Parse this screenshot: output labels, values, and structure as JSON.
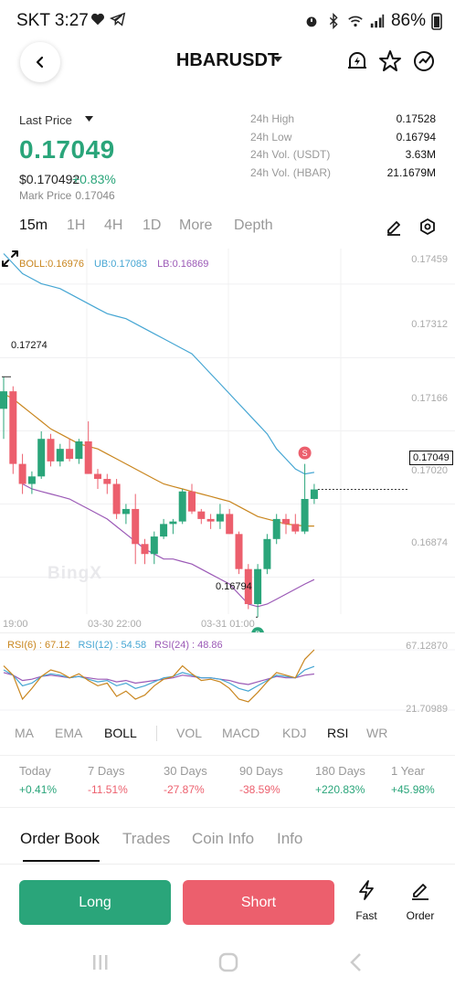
{
  "status": {
    "time": "SKT 3:27",
    "battery": "86%"
  },
  "header": {
    "pair": "HBARUSDT"
  },
  "price": {
    "label": "Last Price",
    "last": "0.17049",
    "usd": "$0.170492",
    "change": "+0.83%",
    "mark_label": "Mark Price",
    "mark_value": "0.17046"
  },
  "stats": [
    {
      "label": "24h High",
      "value": "0.17528"
    },
    {
      "label": "24h Low",
      "value": "0.16794"
    },
    {
      "label": "24h Vol. (USDT)",
      "value": "3.63M"
    },
    {
      "label": "24h Vol. (HBAR)",
      "value": "21.1679M"
    }
  ],
  "timeframes": [
    "15m",
    "1H",
    "4H",
    "1D",
    "More",
    "Depth"
  ],
  "chart": {
    "boll": "BOLL:0.16976",
    "ub": "UB:0.17083",
    "lb": "LB:0.16869",
    "price_axis": [
      "0.17459",
      "0.17312",
      "0.17166",
      "0.17020",
      "0.16874"
    ],
    "current_price": "0.17049",
    "high_marker": "0.17274",
    "low_marker": "0.16794",
    "watermark": "BingX",
    "sell_marker": "S",
    "buy_marker": "B",
    "time_axis": [
      "19:00",
      "03-30 22:00",
      "03-31 01:00"
    ]
  },
  "chart_data": {
    "type": "candlestick",
    "interval": "15m",
    "price_ylim": [
      0.168,
      0.1753
    ],
    "candles": [
      {
        "o": 0.1721,
        "h": 0.17274,
        "l": 0.1715,
        "c": 0.17245
      },
      {
        "o": 0.17245,
        "h": 0.17255,
        "l": 0.1708,
        "c": 0.171
      },
      {
        "o": 0.171,
        "h": 0.1712,
        "l": 0.1704,
        "c": 0.1706
      },
      {
        "o": 0.1706,
        "h": 0.17085,
        "l": 0.1704,
        "c": 0.17075
      },
      {
        "o": 0.17075,
        "h": 0.17165,
        "l": 0.1707,
        "c": 0.1715
      },
      {
        "o": 0.1715,
        "h": 0.1716,
        "l": 0.17095,
        "c": 0.17105
      },
      {
        "o": 0.17105,
        "h": 0.1714,
        "l": 0.17095,
        "c": 0.1713
      },
      {
        "o": 0.1713,
        "h": 0.1715,
        "l": 0.17105,
        "c": 0.1711
      },
      {
        "o": 0.1711,
        "h": 0.1715,
        "l": 0.171,
        "c": 0.17145
      },
      {
        "o": 0.17145,
        "h": 0.17185,
        "l": 0.1708,
        "c": 0.1708
      },
      {
        "o": 0.1708,
        "h": 0.1709,
        "l": 0.1705,
        "c": 0.1707
      },
      {
        "o": 0.1707,
        "h": 0.1708,
        "l": 0.1704,
        "c": 0.1706
      },
      {
        "o": 0.1706,
        "h": 0.1707,
        "l": 0.1699,
        "c": 0.17
      },
      {
        "o": 0.17,
        "h": 0.1702,
        "l": 0.1698,
        "c": 0.1701
      },
      {
        "o": 0.1701,
        "h": 0.1704,
        "l": 0.169,
        "c": 0.1694
      },
      {
        "o": 0.1694,
        "h": 0.1695,
        "l": 0.169,
        "c": 0.1692
      },
      {
        "o": 0.1692,
        "h": 0.16965,
        "l": 0.169,
        "c": 0.16955
      },
      {
        "o": 0.16955,
        "h": 0.1699,
        "l": 0.1695,
        "c": 0.1698
      },
      {
        "o": 0.1698,
        "h": 0.1699,
        "l": 0.1696,
        "c": 0.16985
      },
      {
        "o": 0.16985,
        "h": 0.1705,
        "l": 0.1698,
        "c": 0.17045
      },
      {
        "o": 0.17045,
        "h": 0.1706,
        "l": 0.17,
        "c": 0.17005
      },
      {
        "o": 0.17005,
        "h": 0.1701,
        "l": 0.1698,
        "c": 0.1699
      },
      {
        "o": 0.1699,
        "h": 0.17,
        "l": 0.1697,
        "c": 0.16985
      },
      {
        "o": 0.16985,
        "h": 0.1702,
        "l": 0.1697,
        "c": 0.17
      },
      {
        "o": 0.17,
        "h": 0.1701,
        "l": 0.1696,
        "c": 0.1696
      },
      {
        "o": 0.1696,
        "h": 0.16965,
        "l": 0.1688,
        "c": 0.1689
      },
      {
        "o": 0.1689,
        "h": 0.169,
        "l": 0.1681,
        "c": 0.1682
      },
      {
        "o": 0.1682,
        "h": 0.169,
        "l": 0.16794,
        "c": 0.1689
      },
      {
        "o": 0.1689,
        "h": 0.1696,
        "l": 0.1688,
        "c": 0.1695
      },
      {
        "o": 0.1695,
        "h": 0.17,
        "l": 0.1694,
        "c": 0.1699
      },
      {
        "o": 0.1699,
        "h": 0.17,
        "l": 0.1696,
        "c": 0.1698
      },
      {
        "o": 0.1698,
        "h": 0.17,
        "l": 0.1696,
        "c": 0.16965
      },
      {
        "o": 0.16965,
        "h": 0.171,
        "l": 0.1696,
        "c": 0.1703
      },
      {
        "o": 0.1703,
        "h": 0.1706,
        "l": 0.1702,
        "c": 0.17049
      }
    ],
    "boll_ub": [
      0.1752,
      0.175,
      0.1748,
      0.1747,
      0.1746,
      0.17455,
      0.1745,
      0.1744,
      0.1743,
      0.1742,
      0.1741,
      0.174,
      0.17395,
      0.1739,
      0.1738,
      0.1737,
      0.1736,
      0.1735,
      0.1734,
      0.1733,
      0.1732,
      0.173,
      0.1728,
      0.1726,
      0.1724,
      0.1722,
      0.172,
      0.1718,
      0.1716,
      0.1713,
      0.1711,
      0.1709,
      0.1708,
      0.17083
    ],
    "boll_mid": [
      0.1724,
      0.1723,
      0.17215,
      0.172,
      0.17185,
      0.1717,
      0.1716,
      0.1715,
      0.1714,
      0.17135,
      0.1713,
      0.1712,
      0.1711,
      0.171,
      0.1709,
      0.1708,
      0.1707,
      0.1706,
      0.17055,
      0.1705,
      0.17045,
      0.1704,
      0.17035,
      0.1703,
      0.17025,
      0.17015,
      0.17005,
      0.16995,
      0.1699,
      0.16985,
      0.1698,
      0.16978,
      0.16976,
      0.16976
    ],
    "boll_lb": [
      null,
      null,
      0.1706,
      0.1705,
      0.17045,
      0.1704,
      0.17035,
      0.1703,
      0.1702,
      0.1701,
      0.17,
      0.1699,
      0.16975,
      0.1696,
      0.16945,
      0.1693,
      0.1692,
      0.1691,
      0.1691,
      0.16905,
      0.169,
      0.1689,
      0.1688,
      0.1687,
      0.1686,
      0.1684,
      0.1682,
      0.16815,
      0.1682,
      0.1683,
      0.1684,
      0.1685,
      0.1686,
      0.16869
    ],
    "signals": [
      {
        "type": "S",
        "index": 32
      },
      {
        "type": "B",
        "index": 27
      }
    ],
    "rsi_ylim": [
      21.70989,
      67.1287
    ],
    "rsi6": [
      55,
      48,
      30,
      38,
      47,
      52,
      50,
      46,
      49,
      44,
      40,
      42,
      32,
      36,
      30,
      33,
      40,
      45,
      47,
      55,
      49,
      44,
      45,
      43,
      38,
      30,
      28,
      35,
      43,
      50,
      48,
      46,
      60,
      67.12
    ],
    "rsi12": [
      52,
      48,
      40,
      42,
      47,
      49,
      48,
      46,
      47,
      45,
      43,
      44,
      40,
      42,
      38,
      40,
      43,
      46,
      47,
      50,
      48,
      46,
      46,
      45,
      42,
      38,
      36,
      40,
      44,
      48,
      47,
      46,
      52,
      54.58
    ],
    "rsi24": [
      50,
      48,
      44,
      45,
      47,
      48,
      47,
      46,
      47,
      46,
      45,
      45,
      43,
      44,
      42,
      43,
      44,
      45,
      46,
      48,
      47,
      46,
      46,
      45,
      44,
      42,
      41,
      43,
      45,
      47,
      46,
      46,
      48,
      48.86
    ]
  },
  "rsi": {
    "r6": "RSI(6) : 67.12",
    "r12": "RSI(12) : 54.58",
    "r24": "RSI(24) : 48.86",
    "top": "67.12870",
    "bottom": "21.70989"
  },
  "indicator_tabs": [
    "MA",
    "EMA",
    "BOLL",
    "VOL",
    "MACD",
    "KDJ",
    "RSI",
    "WR"
  ],
  "performance": [
    {
      "label": "Today",
      "value": "+0.41%",
      "dir": "up"
    },
    {
      "label": "7 Days",
      "value": "-11.51%",
      "dir": "down"
    },
    {
      "label": "30 Days",
      "value": "-27.87%",
      "dir": "down"
    },
    {
      "label": "90 Days",
      "value": "-38.59%",
      "dir": "down"
    },
    {
      "label": "180 Days",
      "value": "+220.83%",
      "dir": "up"
    },
    {
      "label": "1 Year",
      "value": "+45.98%",
      "dir": "up"
    }
  ],
  "bottom_tabs": [
    "Order Book",
    "Trades",
    "Coin Info",
    "Info"
  ],
  "actions": {
    "long": "Long",
    "short": "Short",
    "fast": "Fast",
    "order": "Order"
  },
  "colors": {
    "up": "#2aa57a",
    "down": "#ec5f6d",
    "boll": "#c9861f",
    "ub": "#46a6d3",
    "lb": "#9b59b6",
    "rsi6": "#c9861f",
    "rsi12": "#46a6d3",
    "rsi24": "#9b59b6"
  }
}
